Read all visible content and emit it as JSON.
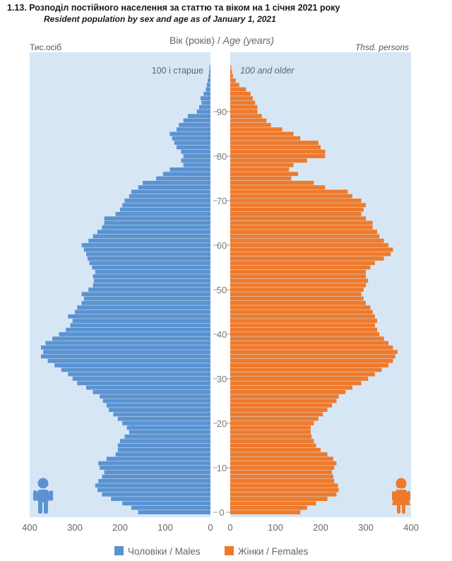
{
  "title_uk": "1.13. Розподіл постійного населення за статтю та віком на 1 січня 2021 року",
  "title_en": "Resident population by sex and age as of January 1, 2021",
  "colors": {
    "panel": "#d6e6f5",
    "males": "#5b93d1",
    "females": "#ee7a2c",
    "axis_text": "#666666"
  },
  "chart_data": {
    "type": "population-pyramid",
    "axis_title_uk": "Вік (років)",
    "axis_title_sep": " / ",
    "axis_title_en": "Age (years)",
    "unit_left": "Тис.осіб",
    "unit_right": "Thsd. persons",
    "top_label_left": "100 і старше",
    "top_label_right": "100 and older",
    "age_ticks": [
      "0",
      "10",
      "20",
      "30",
      "40",
      "50",
      "60",
      "70",
      "80",
      "90"
    ],
    "x_ticks_left": [
      "400",
      "300",
      "200",
      "100",
      "0"
    ],
    "x_ticks_right": [
      "0",
      "100",
      "200",
      "300",
      "400"
    ],
    "xlim": [
      0,
      400
    ],
    "legend": {
      "males": "Чоловіки / Males",
      "females": "Жінки / Females"
    },
    "ages": [
      "0",
      "1",
      "2",
      "3",
      "4",
      "5",
      "6",
      "7",
      "8",
      "9",
      "10",
      "11",
      "12",
      "13",
      "14",
      "15",
      "16",
      "17",
      "18",
      "19",
      "20",
      "21",
      "22",
      "23",
      "24",
      "25",
      "26",
      "27",
      "28",
      "29",
      "30",
      "31",
      "32",
      "33",
      "34",
      "35",
      "36",
      "37",
      "38",
      "39",
      "40",
      "41",
      "42",
      "43",
      "44",
      "45",
      "46",
      "47",
      "48",
      "49",
      "50",
      "51",
      "52",
      "53",
      "54",
      "55",
      "56",
      "57",
      "58",
      "59",
      "60",
      "61",
      "62",
      "63",
      "64",
      "65",
      "66",
      "67",
      "68",
      "69",
      "70",
      "71",
      "72",
      "73",
      "74",
      "75",
      "76",
      "77",
      "78",
      "79",
      "80",
      "81",
      "82",
      "83",
      "84",
      "85",
      "86",
      "87",
      "88",
      "89",
      "90",
      "91",
      "92",
      "93",
      "94",
      "95",
      "96",
      "97",
      "98",
      "99",
      "100+"
    ],
    "males": [
      160,
      175,
      195,
      220,
      240,
      250,
      255,
      248,
      240,
      235,
      245,
      248,
      230,
      210,
      205,
      205,
      200,
      190,
      180,
      185,
      195,
      205,
      215,
      225,
      230,
      238,
      245,
      260,
      275,
      295,
      305,
      315,
      330,
      345,
      360,
      375,
      370,
      375,
      365,
      350,
      335,
      320,
      310,
      305,
      315,
      300,
      295,
      285,
      280,
      285,
      270,
      260,
      258,
      260,
      255,
      262,
      268,
      272,
      275,
      280,
      285,
      270,
      260,
      250,
      240,
      235,
      235,
      210,
      200,
      195,
      190,
      180,
      175,
      160,
      150,
      120,
      105,
      90,
      60,
      65,
      60,
      65,
      75,
      80,
      85,
      90,
      75,
      70,
      60,
      50,
      30,
      25,
      20,
      22,
      15,
      10,
      8,
      6,
      4,
      3,
      2
    ],
    "females": [
      155,
      170,
      190,
      215,
      235,
      240,
      238,
      230,
      228,
      225,
      230,
      235,
      228,
      215,
      200,
      190,
      185,
      180,
      178,
      178,
      185,
      195,
      205,
      215,
      225,
      235,
      240,
      255,
      270,
      290,
      305,
      320,
      335,
      350,
      360,
      365,
      370,
      360,
      350,
      340,
      330,
      325,
      320,
      325,
      320,
      315,
      310,
      300,
      295,
      290,
      295,
      300,
      305,
      300,
      300,
      310,
      320,
      340,
      355,
      360,
      350,
      340,
      330,
      325,
      315,
      315,
      300,
      290,
      295,
      300,
      290,
      270,
      260,
      210,
      185,
      135,
      150,
      130,
      140,
      170,
      210,
      210,
      200,
      195,
      155,
      140,
      115,
      90,
      80,
      70,
      60,
      60,
      55,
      50,
      45,
      35,
      20,
      12,
      6,
      4,
      2
    ]
  }
}
